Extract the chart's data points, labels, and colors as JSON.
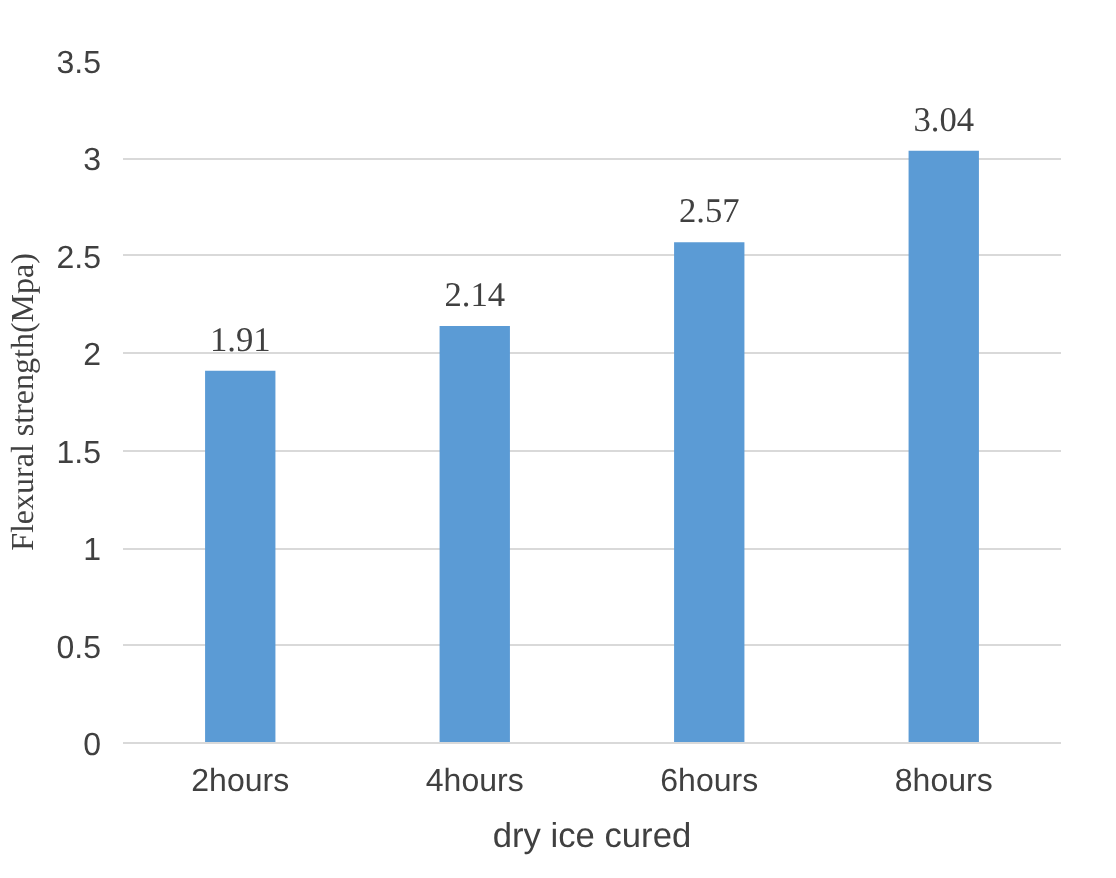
{
  "chart_data": {
    "type": "bar",
    "xlabel": "dry ice cured",
    "ylabel": "Flexural strength(Mpa)",
    "categories": [
      "2hours",
      "4hours",
      "6hours",
      "8hours"
    ],
    "values": [
      1.91,
      2.14,
      2.57,
      3.04
    ],
    "color": "#5b9bd5",
    "ylim": [
      0,
      3.5
    ],
    "yticks": [
      0,
      {
        "value": 0.5,
        "label": "0.5"
      },
      1,
      1.5,
      2,
      2.5,
      3,
      3.5
    ],
    "grid": "y",
    "data_labels": true
  }
}
